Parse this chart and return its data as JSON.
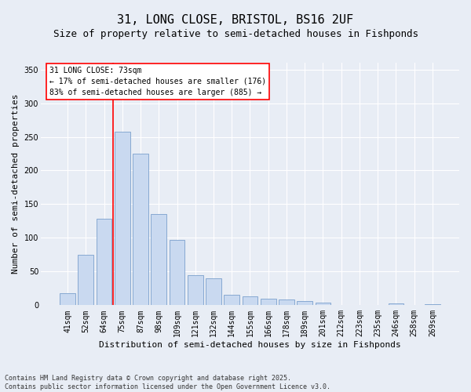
{
  "title1": "31, LONG CLOSE, BRISTOL, BS16 2UF",
  "title2": "Size of property relative to semi-detached houses in Fishponds",
  "xlabel": "Distribution of semi-detached houses by size in Fishponds",
  "ylabel": "Number of semi-detached properties",
  "categories": [
    "41sqm",
    "52sqm",
    "64sqm",
    "75sqm",
    "87sqm",
    "98sqm",
    "109sqm",
    "121sqm",
    "132sqm",
    "144sqm",
    "155sqm",
    "166sqm",
    "178sqm",
    "189sqm",
    "201sqm",
    "212sqm",
    "223sqm",
    "235sqm",
    "246sqm",
    "258sqm",
    "269sqm"
  ],
  "values": [
    18,
    75,
    128,
    258,
    225,
    135,
    97,
    45,
    40,
    15,
    13,
    10,
    8,
    6,
    4,
    0,
    0,
    0,
    3,
    0,
    2
  ],
  "bar_color": "#c9d9f0",
  "bar_edge_color": "#7aa0cc",
  "vline_x": 2.5,
  "vline_color": "red",
  "annotation_title": "31 LONG CLOSE: 73sqm",
  "annotation_line1": "← 17% of semi-detached houses are smaller (176)",
  "annotation_line2": "83% of semi-detached houses are larger (885) →",
  "annotation_box_color": "white",
  "annotation_box_edge": "red",
  "ylim": [
    0,
    360
  ],
  "yticks": [
    0,
    50,
    100,
    150,
    200,
    250,
    300,
    350
  ],
  "background_color": "#e8edf5",
  "footer1": "Contains HM Land Registry data © Crown copyright and database right 2025.",
  "footer2": "Contains public sector information licensed under the Open Government Licence v3.0.",
  "title1_fontsize": 11,
  "title2_fontsize": 9,
  "xlabel_fontsize": 8,
  "ylabel_fontsize": 8,
  "tick_fontsize": 7,
  "footer_fontsize": 6,
  "annotation_fontsize": 7
}
